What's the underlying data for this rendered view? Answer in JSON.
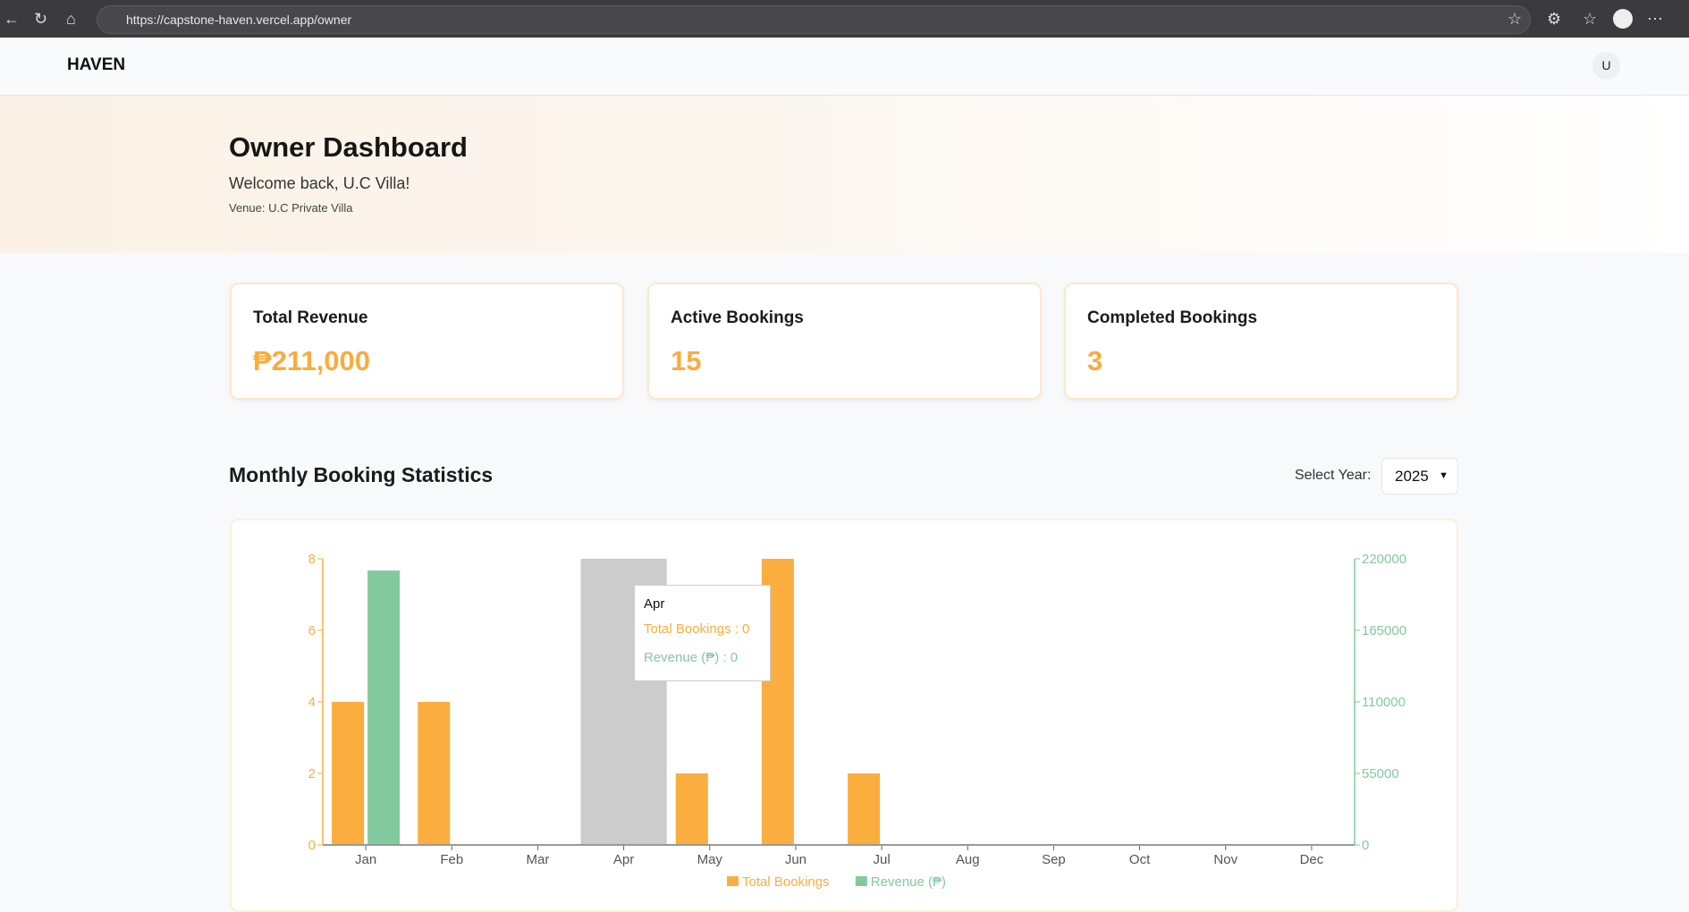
{
  "browser": {
    "url": "https://capstone-haven.vercel.app/owner"
  },
  "nav": {
    "logo": "HAVEN",
    "avatar": "U"
  },
  "hero": {
    "title": "Owner Dashboard",
    "welcome": "Welcome back, U.C Villa!",
    "venue": "Venue: U.C Private Villa"
  },
  "cards": [
    {
      "label": "Total Revenue",
      "value": "₱211,000"
    },
    {
      "label": "Active Bookings",
      "value": "15"
    },
    {
      "label": "Completed Bookings",
      "value": "3"
    }
  ],
  "section": {
    "title": "Monthly Booking Statistics",
    "select_label": "Select Year:",
    "year": "2025"
  },
  "colors": {
    "bookings": "#fbad3f",
    "revenue": "#82ca9d",
    "hover": "#cccccc"
  },
  "tooltip": {
    "month": "Apr",
    "bookings": "Total Bookings : 0",
    "revenue": "Revenue (₱) : 0"
  },
  "chart_data": {
    "type": "bar",
    "categories": [
      "Jan",
      "Feb",
      "Mar",
      "Apr",
      "May",
      "Jun",
      "Jul",
      "Aug",
      "Sep",
      "Oct",
      "Nov",
      "Dec"
    ],
    "series": [
      {
        "name": "Total Bookings",
        "axis": "left",
        "values": [
          4,
          4,
          0,
          0,
          2,
          8,
          2,
          0,
          0,
          0,
          0,
          0
        ]
      },
      {
        "name": "Revenue (₱)",
        "axis": "right",
        "values": [
          211000,
          0,
          0,
          0,
          0,
          0,
          0,
          0,
          0,
          0,
          0,
          0
        ]
      }
    ],
    "left_ylim": [
      0,
      8
    ],
    "left_ticks": [
      0,
      2,
      4,
      6,
      8
    ],
    "right_ylim": [
      0,
      220000
    ],
    "right_ticks": [
      0,
      55000,
      110000,
      165000,
      220000
    ],
    "highlighted": "Apr",
    "legend": "bottom"
  }
}
